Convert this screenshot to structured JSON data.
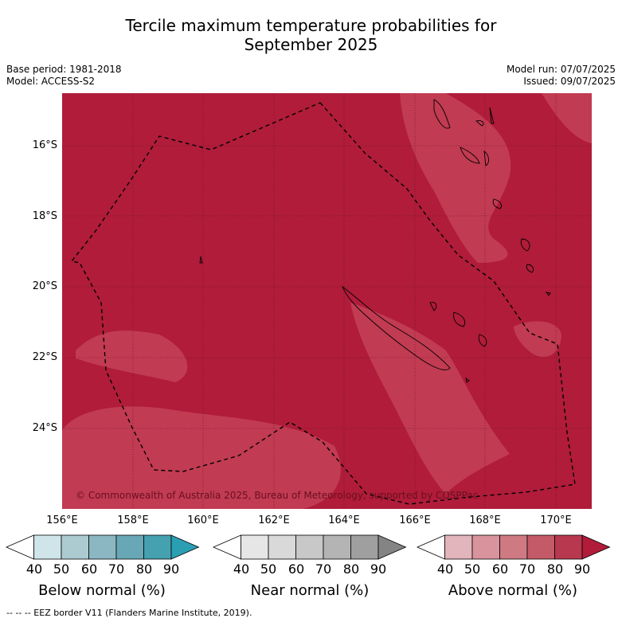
{
  "title_line1": "Tercile maximum temperature probabilities for",
  "title_line2": "September 2025",
  "base_period": "Base period: 1981-2018",
  "model": "Model: ACCESS-S2",
  "model_run": "Model run: 07/07/2025",
  "issued": "Issued: 09/07/2025",
  "lat_labels": [
    "16°S",
    "18°S",
    "20°S",
    "22°S",
    "24°S"
  ],
  "lon_labels": [
    "156°E",
    "158°E",
    "160°E",
    "162°E",
    "164°E",
    "166°E",
    "168°E",
    "170°E"
  ],
  "copyright": "© Commonwealth of Australia 2025, Bureau of Meteorology, supported by COSPPac",
  "colorbars": [
    {
      "title": "Below normal (%)",
      "ticks": [
        "40",
        "50",
        "60",
        "70",
        "80",
        "90"
      ],
      "colors": [
        "#ffffff",
        "#cfe5ea",
        "#abcbd1",
        "#8ab7c2",
        "#68a8b6",
        "#45a0b0",
        "#2a9fb3"
      ]
    },
    {
      "title": "Near normal (%)",
      "ticks": [
        "40",
        "50",
        "60",
        "70",
        "80",
        "90"
      ],
      "colors": [
        "#ffffff",
        "#e6e6e6",
        "#d9d9d9",
        "#c8c8c8",
        "#b4b4b4",
        "#9f9f9f",
        "#848484"
      ]
    },
    {
      "title": "Above normal (%)",
      "ticks": [
        "40",
        "50",
        "60",
        "70",
        "80",
        "90"
      ],
      "colors": [
        "#ffffff",
        "#e2b4bc",
        "#d9939c",
        "#cf7a83",
        "#c45a68",
        "#b8384f",
        "#b01c3a"
      ]
    }
  ],
  "map_colors": {
    "dominant": "#b01c3a",
    "lighter": "#c13b52"
  },
  "footer_legend": "--  --  -- EEZ border V11 (Flanders Marine Institute, 2019)."
}
